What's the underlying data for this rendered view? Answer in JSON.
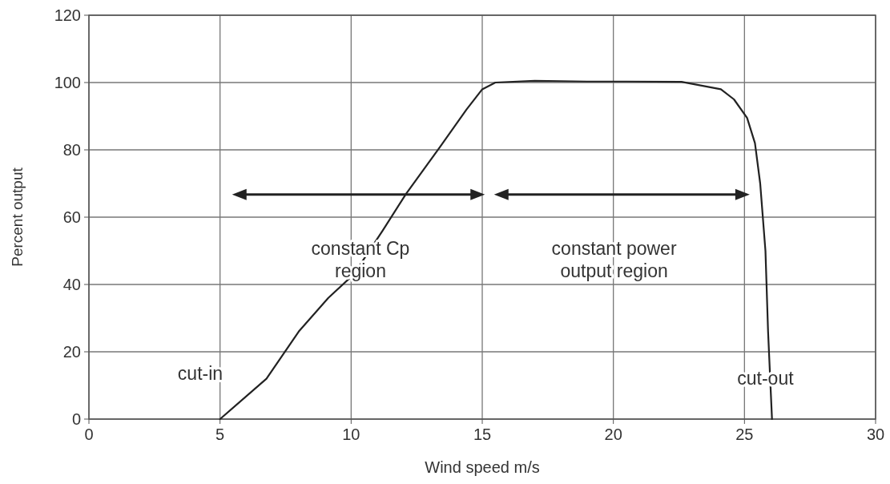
{
  "chart_data": {
    "type": "line",
    "xlabel": "Wind speed m/s",
    "ylabel": "Percent output",
    "x": [
      5,
      6.77,
      8.0,
      9.13,
      10.1,
      11.2,
      12.1,
      13.4,
      14.4,
      15.0,
      15.5,
      17,
      19,
      20.5,
      22.6,
      24.1,
      24.6,
      25.1,
      25.4,
      25.6,
      25.8,
      25.9,
      26.05
    ],
    "series": [
      {
        "color": "#222222",
        "values": [
          0,
          12,
          26,
          36,
          43,
          56,
          67,
          81,
          92,
          98,
          100,
          100.5,
          100.3,
          100.3,
          100.2,
          98,
          95,
          89.5,
          82,
          70,
          50,
          26,
          0
        ]
      }
    ],
    "xlim": [
      0,
      30
    ],
    "xticks": [
      0,
      5,
      10,
      15,
      20,
      25,
      30
    ],
    "ylim": [
      0,
      120
    ],
    "yticks": [
      0,
      20,
      40,
      60,
      80,
      100,
      120
    ],
    "grid": true,
    "marker": "none",
    "line_style": "solid",
    "annotations": [
      "cut-in",
      "constant Cp\nregion",
      "constant power\noutput region",
      "cut-out"
    ]
  }
}
